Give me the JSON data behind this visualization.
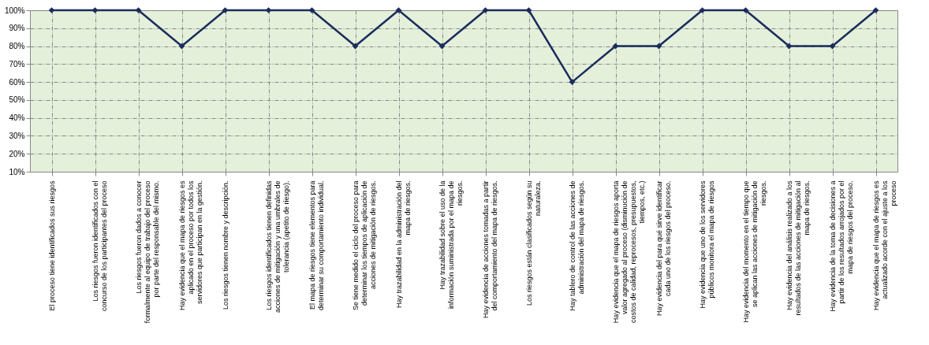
{
  "chart_data": {
    "type": "line",
    "categories": [
      "El proceso tiene identificados  sus riesgos",
      "Los riesgos  fueron identificados con el concurso de los participantes del proceso",
      "Los riesgos  fueron dados  a conocer formalmente al equipo de trabajo del proceso por parte del responsable del mismo.",
      "Hay evidencia que el mapa de riesgos es aplicado en el proceso por todos los servidores que participan en la gestión.",
      "Los riesgos tienen nombre y descripción.",
      "Los riesgos identificados tienen definidas acciones de mitigación y una umbrales de tolerancia (apetito de riesgo).",
      "El mapa de riesgos tiene elementos para determinar su comportamiento individual.",
      "Se tiene medido el ciclo del proceso para determinar los tiempos de aplicación de acciones de mitigación de riesgos.",
      "Hay trazabilidad en la administración del mapa de riesgos.",
      "Hay trazabilidad sobre el uso de la información suministrada por el mapa de riesgos.",
      "Hay evidencia de acciones tomadas a partir del comportamiento del mapa de riesgos.",
      "Los riesgos  están clasificados  según su naturaleza.",
      "Hay tablero de control de las  acciones de administración del mapa de riesgos.",
      "Hay evidencia que el mapa de riesgos aporta valor agregado al proceso (disminución de costos de calidad, reprocesos, presupuestos, tiempos, etc.)",
      "Hay evidencia del para qué sirve identificar cada uno de los riesgos  del proceso.",
      "Hay evidencia que uno de los servidores públicos monitora el mapa de riesgos",
      "Hay evidencia del momento en el tiempo que se aplican las  acciones  de mitigación de riesgos.",
      "Hay evidencia del análisis  realizado a los resultados de las acciones de mitigación al mapa de riesgos.",
      "Hay evidencia de la toma de decisiones a partir de los resultados arrojados por el mapa de riesgos del proceso.",
      "Hay evidencia que el mapa de riesgos es actualizado acorde con el ajuste a los proceso"
    ],
    "series": [
      {
        "color": "#1b2d5c",
        "values": [
          100,
          100,
          100,
          80,
          100,
          100,
          100,
          80,
          100,
          80,
          100,
          100,
          60,
          80,
          80,
          100,
          100,
          80,
          80,
          100
        ]
      }
    ],
    "ylim": [
      10,
      100
    ],
    "yticks": [
      {
        "value": 10,
        "label": "10%"
      },
      {
        "value": 20,
        "label": "20%"
      },
      {
        "value": 30,
        "label": "30%"
      },
      {
        "value": 40,
        "label": "40%"
      },
      {
        "value": 50,
        "label": "50%"
      },
      {
        "value": 60,
        "label": "60%"
      },
      {
        "value": 70,
        "label": "70%"
      },
      {
        "value": 80,
        "label": "80%"
      },
      {
        "value": 90,
        "label": "90%"
      },
      {
        "value": 100,
        "label": "100%"
      }
    ],
    "grid": true,
    "marker": "diamond",
    "line_style": "solid"
  }
}
